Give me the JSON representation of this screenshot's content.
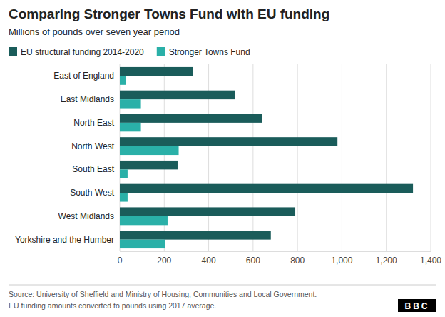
{
  "chart_data": {
    "type": "bar",
    "orientation": "horizontal",
    "title": "Comparing Stronger Towns Fund with EU funding",
    "subtitle": "Millions of pounds over seven year period",
    "categories": [
      "East of England",
      "East Midlands",
      "North East",
      "North West",
      "South East",
      "South West",
      "West Midlands",
      "Yorkshire and the Humber"
    ],
    "series": [
      {
        "name": "EU structural funding 2014-2020",
        "color": "#1a5c5a",
        "values": [
          330,
          520,
          640,
          980,
          260,
          1320,
          790,
          680
        ]
      },
      {
        "name": "Stronger Towns Fund",
        "color": "#2ab0a8",
        "values": [
          28,
          95,
          95,
          265,
          35,
          35,
          215,
          205
        ]
      }
    ],
    "xlim": [
      0,
      1400
    ],
    "xticks": [
      0,
      200,
      400,
      600,
      800,
      {
        "value": 1000,
        "label": "1,000"
      },
      {
        "value": 1200,
        "label": "1,200"
      },
      {
        "value": 1400,
        "label": "1,400"
      }
    ],
    "grid": true,
    "legend": "upper left",
    "annotations": [
      "Source: University of Sheffield and Ministry of Housing, Communities and Local Government.",
      "EU funding amounts converted to pounds using 2017 average.",
      "BBC"
    ]
  }
}
